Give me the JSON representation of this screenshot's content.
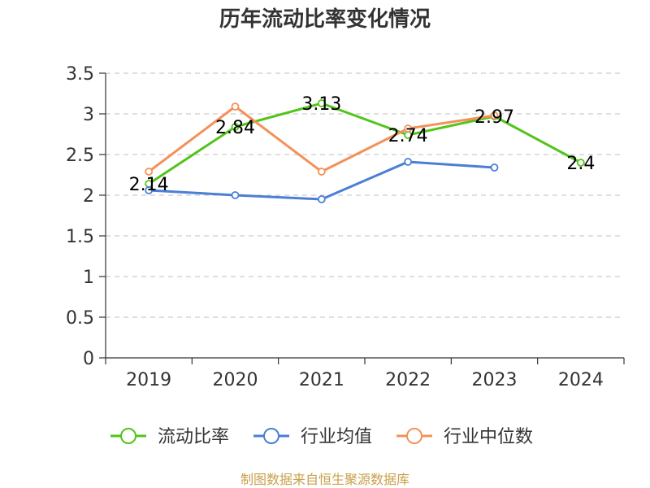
{
  "chart_data": {
    "type": "line",
    "title": "历年流动比率变化情况",
    "categories": [
      "2019",
      "2020",
      "2021",
      "2022",
      "2023",
      "2024"
    ],
    "ylim": [
      0,
      3.5
    ],
    "yticks": [
      "0",
      "0.5",
      "1",
      "1.5",
      "2",
      "2.5",
      "3",
      "3.5"
    ],
    "grid": true,
    "legend_position": "bottom",
    "series": [
      {
        "name": "流动比率",
        "color": "#52c41a",
        "values": [
          2.14,
          2.84,
          3.13,
          2.74,
          2.97,
          2.4
        ],
        "labels": [
          "2.14",
          "2.84",
          "3.13",
          "2.74",
          "2.97",
          "2.4"
        ]
      },
      {
        "name": "行业均值",
        "color": "#4a7fd6",
        "values": [
          2.06,
          2.0,
          1.95,
          2.41,
          2.34,
          null
        ]
      },
      {
        "name": "行业中位数",
        "color": "#f4915a",
        "values": [
          2.29,
          3.09,
          2.29,
          2.82,
          2.98,
          null
        ]
      }
    ]
  },
  "footer": {
    "source": "制图数据来自恒生聚源数据库"
  }
}
